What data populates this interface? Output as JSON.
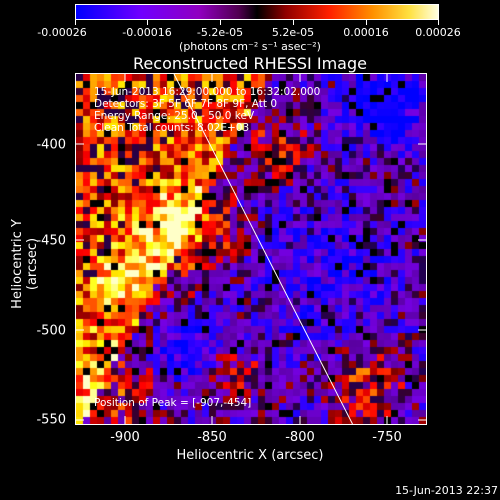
{
  "colorbar": {
    "tick_labels": [
      "-0.00026",
      "-0.00016",
      "-5.2e-05",
      "5.2e-05",
      "0.00016",
      "0.00026"
    ],
    "units": "(photons cm⁻² s⁻¹ asec⁻²)",
    "colors": [
      "#0000ff",
      "#8000ff",
      "#7a00a0",
      "#600040",
      "#200000",
      "#800000",
      "#ff0000",
      "#ff8000",
      "#ffd000",
      "#ffffd0"
    ]
  },
  "title": "Reconstructed RHESSI Image",
  "annotations": [
    "15-Jun-2013 16:29:00.000 to 16:32:02.000",
    "Detectors: 3F 5F 6F 7F 8F 9F, Att 0",
    "Energy Range: 25.0 - 50.0 keV",
    "Clean    Total counts: 8.02E+03"
  ],
  "peak_label": "Position of Peak = [-907,-454]",
  "axes": {
    "x_label": "Heliocentric X (arcsec)",
    "y_label": "Heliocentric Y (arcsec)",
    "x_ticks": [
      "-900",
      "-850",
      "-800",
      "-750"
    ],
    "y_ticks": [
      "-400",
      "-450",
      "-500",
      "-550"
    ],
    "x_range": [
      -928,
      -728
    ],
    "y_range": [
      -553,
      -353
    ]
  },
  "limb_line": {
    "from": [
      -872,
      -353
    ],
    "to": [
      -770,
      -553
    ]
  },
  "footer_timestamp": "15-Jun-2013 22:37"
}
